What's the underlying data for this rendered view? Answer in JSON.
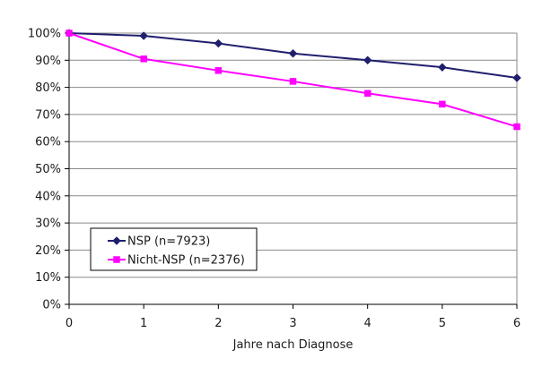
{
  "chart_data": {
    "type": "line",
    "title": "",
    "xlabel": "Jahre nach Diagnose",
    "ylabel": "",
    "x": [
      0,
      1,
      2,
      3,
      4,
      5,
      6
    ],
    "xlim": [
      0,
      6
    ],
    "ylim": [
      0,
      100
    ],
    "y_ticks": [
      "0%",
      "10%",
      "20%",
      "30%",
      "40%",
      "50%",
      "60%",
      "70%",
      "80%",
      "90%",
      "100%"
    ],
    "x_ticks": [
      "0",
      "1",
      "2",
      "3",
      "4",
      "5",
      "6"
    ],
    "grid": "y-major",
    "legend_position": "lower-left",
    "series": [
      {
        "name": "NSP (n=7923)",
        "values": [
          100,
          99,
          96.2,
          92.5,
          90,
          87.4,
          83.5
        ],
        "color": "#1f1f6e",
        "marker": "diamond"
      },
      {
        "name": "Nicht-NSP (n=2376)",
        "values": [
          100,
          90.5,
          86.2,
          82.2,
          77.8,
          73.8,
          65.5
        ],
        "color": "#ff00ff",
        "marker": "square"
      }
    ]
  }
}
